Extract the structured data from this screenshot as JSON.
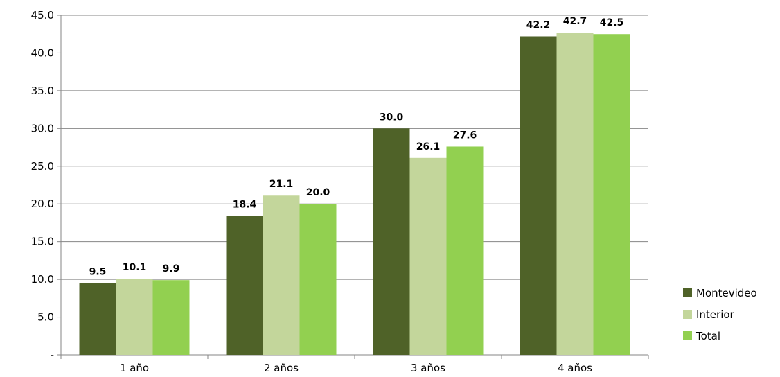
{
  "chart_data": {
    "type": "bar",
    "categories": [
      "1 año",
      "2 años",
      "3 años",
      "4 años"
    ],
    "series": [
      {
        "name": "Montevideo",
        "values": [
          9.5,
          18.4,
          30.0,
          42.2
        ],
        "color": "#4f6228"
      },
      {
        "name": "Interior",
        "values": [
          10.1,
          21.1,
          26.1,
          42.7
        ],
        "color": "#c3d69b"
      },
      {
        "name": "Total",
        "values": [
          9.9,
          20.0,
          27.6,
          42.5
        ],
        "color": "#92d050"
      }
    ],
    "y_ticks": [
      "-",
      "5.0",
      "10.0",
      "15.0",
      "20.0",
      "25.0",
      "30.0",
      "35.0",
      "40.0",
      "45.0"
    ],
    "ylim": [
      0,
      45
    ],
    "title": "",
    "xlabel": "",
    "ylabel": "",
    "grid": true,
    "legend_position": "right"
  }
}
